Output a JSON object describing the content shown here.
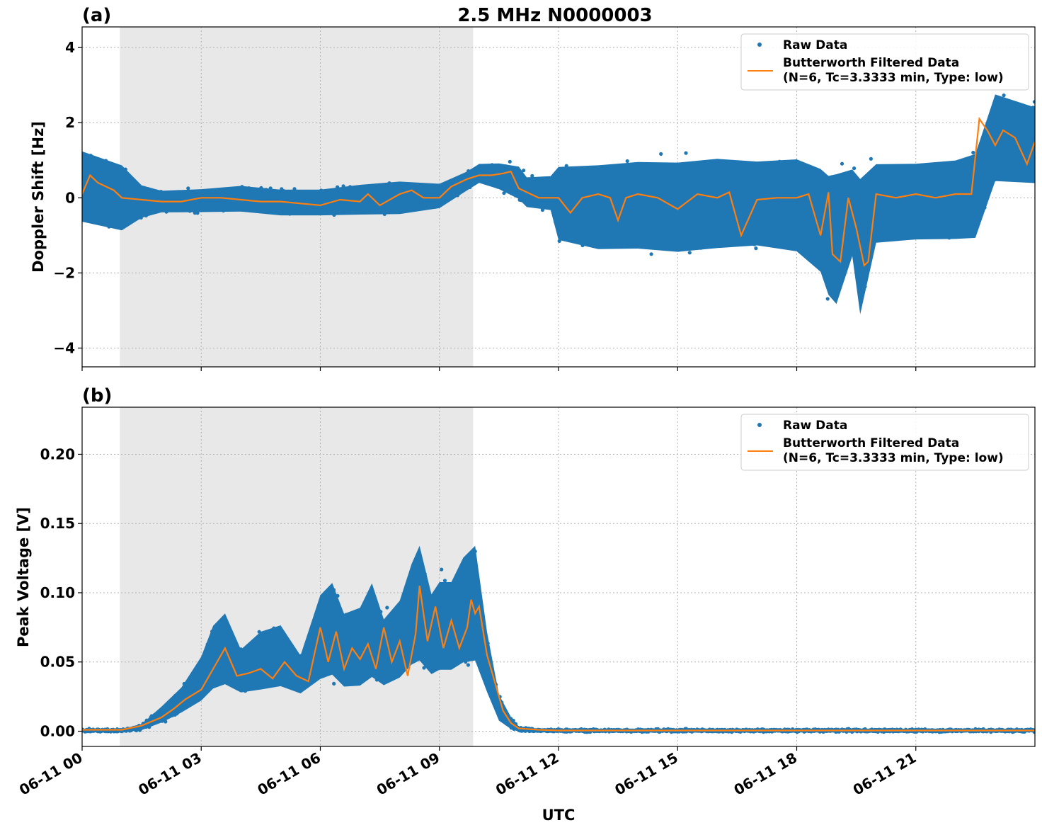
{
  "figure": {
    "title": "2.5 MHz N0000003",
    "xlabel": "UTC",
    "x_ticks": [
      "06-11 00",
      "06-11 03",
      "06-11 06",
      "06-11 09",
      "06-11 12",
      "06-11 15",
      "06-11 18",
      "06-11 21"
    ],
    "shaded_interval_hours": [
      0.95,
      9.85
    ],
    "colors": {
      "raw": "#1f77b4",
      "filtered": "#ff7f0e",
      "shade": "#e8e8e8",
      "grid": "#b0b0b0"
    }
  },
  "chart_data": [
    {
      "type": "scatter",
      "panel_label": "(a)",
      "ylabel": "Doppler Shift [Hz]",
      "xlim": [
        0,
        24
      ],
      "ylim": [
        -4.5,
        4.55
      ],
      "y_ticks": [
        4,
        2,
        0,
        -2,
        -4
      ],
      "y_tick_labels": [
        "4",
        "2",
        "0",
        "−2",
        "−4"
      ],
      "grid": true,
      "legend_position": "top-right",
      "legend": [
        "Raw Data",
        "Butterworth Filtered Data",
        "(N=6, Tc=3.3333 min, Type: low)"
      ],
      "series": [
        {
          "name": "Raw Data",
          "style": "points",
          "envelope_hours": [
            0,
            0.5,
            1,
            1.5,
            2,
            3,
            4,
            5,
            6,
            7,
            8,
            9,
            9.7,
            10,
            10.5,
            11,
            11.2,
            11.8,
            12,
            13,
            14,
            15,
            16,
            17,
            18,
            18.6,
            18.8,
            19,
            19.4,
            19.6,
            20,
            21,
            22,
            22.5,
            23,
            24
          ],
          "upper": [
            1.6,
            1.4,
            1.2,
            0.5,
            0.3,
            0.35,
            0.45,
            0.35,
            0.35,
            0.5,
            0.6,
            0.5,
            0.8,
            1.0,
            1.05,
            1.0,
            0.7,
            0.75,
            1.2,
            1.3,
            1.4,
            1.4,
            1.5,
            1.4,
            1.5,
            1.3,
            1.2,
            1.3,
            1.2,
            1.2,
            1.3,
            1.3,
            1.4,
            1.6,
            3.2,
            2.8
          ],
          "lower": [
            -1.0,
            -1.1,
            -1.2,
            -0.7,
            -0.5,
            -0.5,
            -0.5,
            -0.6,
            -0.6,
            -0.6,
            -0.6,
            -0.4,
            0.1,
            0.3,
            0.1,
            -0.2,
            -0.4,
            -0.5,
            -1.5,
            -1.8,
            -1.8,
            -1.9,
            -1.8,
            -1.7,
            -1.9,
            -2.5,
            -3.2,
            -3.5,
            -2.0,
            -3.8,
            -1.6,
            -1.5,
            -1.5,
            -1.5,
            0.0,
            0.0
          ]
        },
        {
          "name": "Butterworth Filtered Data",
          "style": "line",
          "x": [
            0,
            0.2,
            0.4,
            0.6,
            0.8,
            1,
            1.5,
            2,
            2.5,
            3,
            3.5,
            4,
            4.5,
            5,
            5.5,
            6,
            6.5,
            7,
            7.2,
            7.5,
            8,
            8.3,
            8.6,
            9,
            9.3,
            9.7,
            10,
            10.3,
            10.6,
            10.8,
            11,
            11.5,
            12,
            12.3,
            12.6,
            13,
            13.3,
            13.5,
            13.7,
            14,
            14.5,
            15,
            15.5,
            16,
            16.3,
            16.6,
            17,
            17.5,
            18,
            18.3,
            18.6,
            18.8,
            18.9,
            19.1,
            19.3,
            19.5,
            19.7,
            19.8,
            20,
            20.5,
            21,
            21.5,
            22,
            22.4,
            22.6,
            22.8,
            23,
            23.2,
            23.5,
            23.8,
            24
          ],
          "y": [
            0.1,
            0.6,
            0.4,
            0.3,
            0.2,
            0.0,
            -0.05,
            -0.1,
            -0.1,
            0.0,
            0.0,
            -0.05,
            -0.1,
            -0.1,
            -0.15,
            -0.2,
            -0.05,
            -0.1,
            0.1,
            -0.2,
            0.1,
            0.2,
            0.0,
            0.0,
            0.3,
            0.5,
            0.6,
            0.6,
            0.65,
            0.7,
            0.25,
            0.0,
            0.0,
            -0.4,
            0.0,
            0.1,
            0.0,
            -0.6,
            0.0,
            0.1,
            0.0,
            -0.3,
            0.1,
            0.0,
            0.15,
            -1.0,
            -0.05,
            0.0,
            0.0,
            0.1,
            -1.0,
            0.15,
            -1.5,
            -1.7,
            0.0,
            -0.8,
            -1.8,
            -1.7,
            0.1,
            0.0,
            0.1,
            0.0,
            0.1,
            0.1,
            2.1,
            1.8,
            1.4,
            1.8,
            1.6,
            0.9,
            1.5
          ]
        }
      ]
    },
    {
      "type": "scatter",
      "panel_label": "(b)",
      "ylabel": "Peak Voltage [V]",
      "xlim": [
        0,
        24
      ],
      "ylim": [
        -0.011,
        0.234
      ],
      "y_ticks": [
        0.2,
        0.15,
        0.1,
        0.05,
        0.0
      ],
      "y_tick_labels": [
        "0.20",
        "0.15",
        "0.10",
        "0.05",
        "0.00"
      ],
      "grid": true,
      "legend_position": "top-right",
      "legend": [
        "Raw Data",
        "Butterworth Filtered Data",
        "(N=6, Tc=3.3333 min, Type: low)"
      ],
      "series": [
        {
          "name": "Raw Data",
          "style": "points",
          "envelope_hours": [
            0,
            1,
            1.5,
            2,
            2.5,
            3,
            3.3,
            3.6,
            4,
            4.5,
            5,
            5.5,
            6,
            6.3,
            6.6,
            7,
            7.3,
            7.6,
            8,
            8.3,
            8.5,
            8.8,
            9,
            9.3,
            9.6,
            9.9,
            10.2,
            10.5,
            10.8,
            11,
            11.5,
            12,
            24
          ],
          "upper": [
            0.002,
            0.002,
            0.006,
            0.02,
            0.035,
            0.06,
            0.085,
            0.095,
            0.065,
            0.08,
            0.085,
            0.06,
            0.11,
            0.12,
            0.095,
            0.1,
            0.12,
            0.09,
            0.105,
            0.135,
            0.15,
            0.11,
            0.12,
            0.12,
            0.14,
            0.15,
            0.08,
            0.03,
            0.012,
            0.004,
            0.002,
            0.002,
            0.002
          ],
          "lower": [
            -0.001,
            -0.001,
            0.0,
            0.004,
            0.01,
            0.016,
            0.022,
            0.024,
            0.022,
            0.022,
            0.024,
            0.022,
            0.026,
            0.028,
            0.022,
            0.022,
            0.026,
            0.024,
            0.028,
            0.034,
            0.035,
            0.03,
            0.032,
            0.032,
            0.035,
            0.035,
            0.02,
            0.004,
            0.0,
            -0.001,
            -0.001,
            -0.001,
            -0.001
          ]
        },
        {
          "name": "Butterworth Filtered Data",
          "style": "line",
          "x": [
            0,
            1,
            1.5,
            2,
            2.3,
            2.6,
            3,
            3.3,
            3.6,
            3.9,
            4.2,
            4.5,
            4.8,
            5.1,
            5.4,
            5.7,
            6.0,
            6.2,
            6.4,
            6.6,
            6.8,
            7.0,
            7.2,
            7.4,
            7.6,
            7.8,
            8.0,
            8.2,
            8.4,
            8.5,
            8.7,
            8.9,
            9.1,
            9.3,
            9.5,
            9.7,
            9.8,
            9.9,
            10.0,
            10.2,
            10.4,
            10.6,
            10.8,
            11,
            11.5,
            12,
            24
          ],
          "y": [
            0.001,
            0.001,
            0.004,
            0.01,
            0.016,
            0.023,
            0.03,
            0.045,
            0.06,
            0.04,
            0.042,
            0.045,
            0.038,
            0.05,
            0.04,
            0.036,
            0.075,
            0.05,
            0.072,
            0.045,
            0.06,
            0.052,
            0.063,
            0.045,
            0.075,
            0.05,
            0.065,
            0.04,
            0.07,
            0.105,
            0.065,
            0.09,
            0.06,
            0.08,
            0.06,
            0.075,
            0.095,
            0.085,
            0.09,
            0.055,
            0.035,
            0.015,
            0.006,
            0.002,
            0.001,
            0.0005,
            0.0005
          ]
        }
      ]
    }
  ]
}
